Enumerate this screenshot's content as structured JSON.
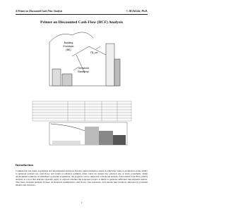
{
  "header": {
    "left": "A Primer on Discounted Cash Flow Analysis",
    "right": "© JB DeLisle, Ph.D."
  },
  "title": "Primer on Discounted Cash Flow (DCF) Analysis",
  "figure": {
    "labels": [
      "Building",
      "Envelope",
      "(BE)",
      "TB_ce",
      "Threshold",
      "Backdrop"
    ]
  },
  "sections": [
    {
      "heading": "Introduction",
      "text": "Commercial real estate acquisition and development decisions involve capital intensive assets in which the value is predicated on the ability to generate positive net cash flows and retain or enhance terminal value. Once an analyst has selected one or more potentially viable development solutions or identified a potential acquisition, the property can be subjected to financial analysis. Discounted Cash Flow (DCF) analysis is a tool that analysts typically apply to explore whether the proposed project is likely to generate sufficient risk-adjusted returns. This more in-depth analysis focuses on financial assumptions, cash flows, risk exposures, and returns that would be imposed by potential lenders and investors."
    }
  ],
  "page_number": "1"
}
